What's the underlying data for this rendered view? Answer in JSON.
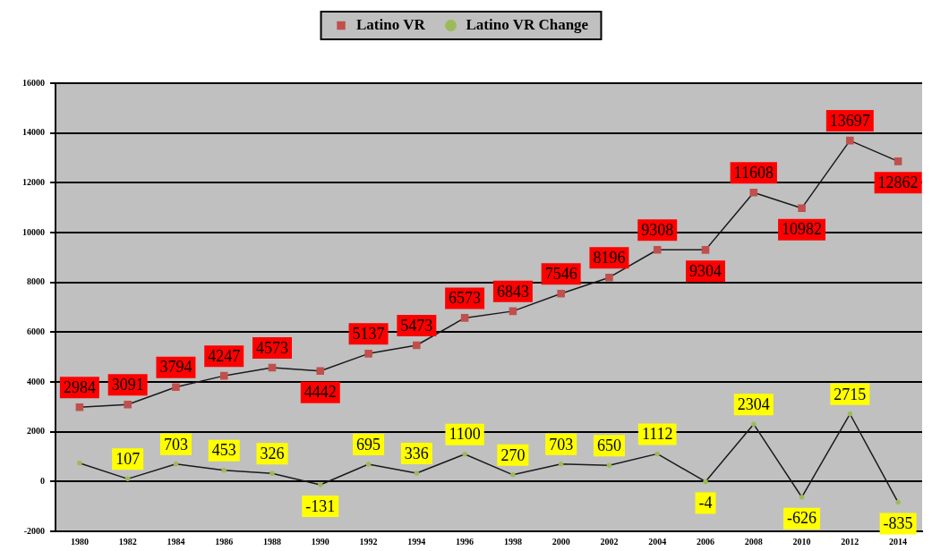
{
  "chart_data": {
    "type": "line",
    "categories": [
      "1980",
      "1982",
      "1984",
      "1986",
      "1988",
      "1990",
      "1992",
      "1994",
      "1996",
      "1998",
      "2000",
      "2002",
      "2004",
      "2006",
      "2008",
      "2010",
      "2012",
      "2014"
    ],
    "series": [
      {
        "name": "Latino VR",
        "color": "#c0504d",
        "marker": "square",
        "values": [
          2984,
          3091,
          3794,
          4247,
          4573,
          4442,
          5137,
          5473,
          6573,
          6843,
          7546,
          8196,
          9308,
          9304,
          11608,
          10982,
          13697,
          12862
        ],
        "value_labels": [
          "2984",
          "3091",
          "3794",
          "4247",
          "4573",
          "4442",
          "5137",
          "5473",
          "6573",
          "6843",
          "7546",
          "8196",
          "9308",
          "9304",
          "11608",
          "10982",
          "13697",
          "12862"
        ]
      },
      {
        "name": "Latino VR Change",
        "color": "#9bbb59",
        "marker": "circle",
        "values": [
          740,
          107,
          703,
          453,
          326,
          -131,
          695,
          336,
          1100,
          270,
          703,
          650,
          1112,
          -4,
          2304,
          -626,
          2715,
          -835
        ],
        "value_labels": [
          null,
          "107",
          "703",
          "453",
          "326",
          "-131",
          "695",
          "336",
          "1100",
          "270",
          "703",
          "650",
          "1112",
          "-4",
          "2304",
          "-626",
          "2715",
          "-835"
        ]
      }
    ],
    "ylim": [
      -2000,
      16000
    ],
    "yticks": [
      -2000,
      0,
      2000,
      4000,
      6000,
      8000,
      10000,
      12000,
      14000,
      16000
    ],
    "grid": "y",
    "legend": "top",
    "line_style": "solid"
  }
}
